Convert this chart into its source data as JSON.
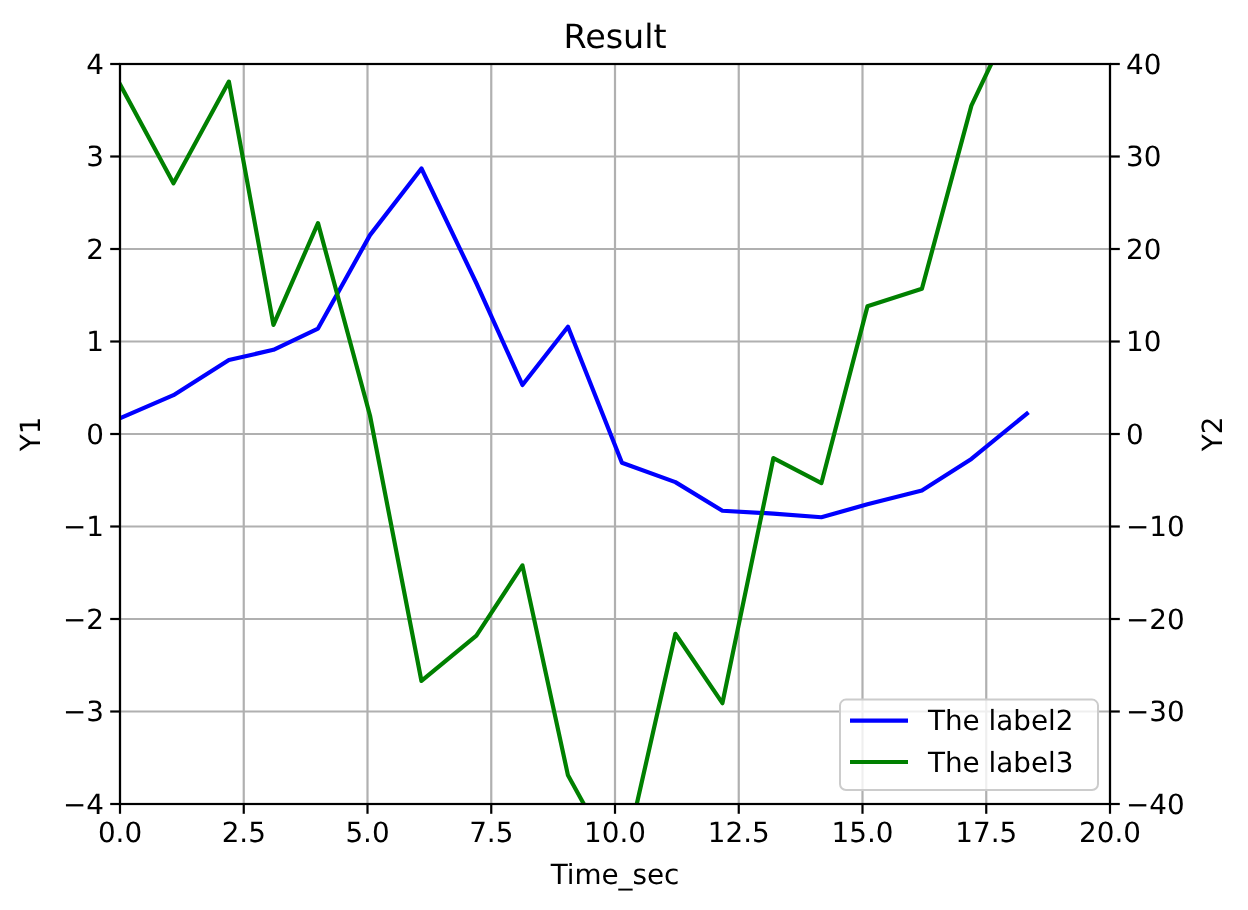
{
  "chart_data": {
    "type": "line",
    "title": "Result",
    "xlabel": "Time_sec",
    "ylabel": "Y1",
    "y2label": "Y2",
    "xlim": [
      0,
      20
    ],
    "xticks": [
      {
        "value": 0,
        "label": "0.0"
      },
      {
        "value": 2.5,
        "label": "2.5"
      },
      {
        "value": 5,
        "label": "5.0"
      },
      {
        "value": 7.5,
        "label": "7.5"
      },
      {
        "value": 10,
        "label": "10.0"
      },
      {
        "value": 12.5,
        "label": "12.5"
      },
      {
        "value": 15,
        "label": "15.0"
      },
      {
        "value": 17.5,
        "label": "17.5"
      },
      {
        "value": 20,
        "label": "20.0"
      }
    ],
    "ylim": [
      -4,
      4
    ],
    "yticks": [
      {
        "value": -4,
        "label": "−4"
      },
      {
        "value": -3,
        "label": "−3"
      },
      {
        "value": -2,
        "label": "−2"
      },
      {
        "value": -1,
        "label": "−1"
      },
      0,
      1,
      2,
      3,
      4
    ],
    "y2lim": [
      -40,
      40
    ],
    "y2ticks": [
      {
        "value": -40,
        "label": "−40"
      },
      {
        "value": -30,
        "label": "−30"
      },
      {
        "value": -20,
        "label": "−20"
      },
      {
        "value": -10,
        "label": "−10"
      },
      0,
      10,
      20,
      30,
      40
    ],
    "grid": true,
    "legend": "bottom right",
    "series": [
      {
        "name": "The label2",
        "color": "#0000ff",
        "x": [
          0,
          1.08,
          2.2,
          3.1,
          4.0,
          5.05,
          6.09,
          7.2,
          8.13,
          9.05,
          10.14,
          11.22,
          12.17,
          13.2,
          14.17,
          15.1,
          16.2,
          17.2,
          18.32
        ],
        "values": [
          0.17,
          0.42,
          0.8,
          0.91,
          1.14,
          2.15,
          2.87,
          1.63,
          0.53,
          1.16,
          -0.31,
          -0.52,
          -0.83,
          -0.86,
          -0.9,
          -0.76,
          -0.61,
          -0.27,
          0.22
        ]
      },
      {
        "name": "The label3",
        "color": "#008000",
        "axis": "y2",
        "x": [
          0,
          1.08,
          2.2,
          3.1,
          4.0,
          5.05,
          6.09,
          7.2,
          8.13,
          9.05,
          9.37,
          10.14,
          10.44,
          11.22,
          12.17,
          13.2,
          14.17,
          15.1,
          16.2,
          17.2,
          17.6
        ],
        "values": [
          37.8,
          27.1,
          38.1,
          11.8,
          22.8,
          2.0,
          -26.7,
          -21.8,
          -14.2,
          -36.9,
          -40,
          null,
          -40,
          -21.6,
          -29.1,
          -2.6,
          -5.3,
          13.8,
          15.7,
          35.5,
          40
        ]
      }
    ]
  }
}
